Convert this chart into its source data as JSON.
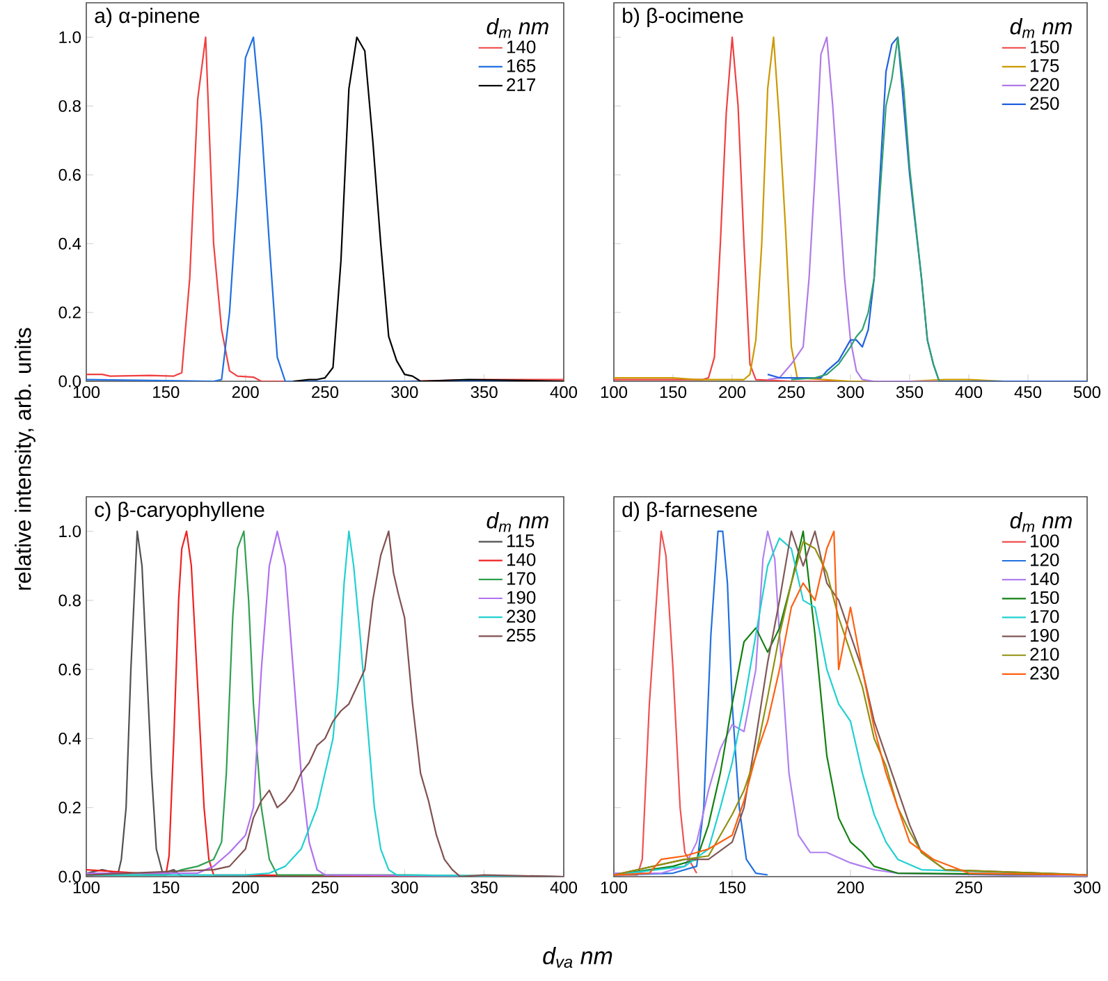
{
  "chart_data": [
    {
      "type": "line",
      "title": "a)  α-pinene",
      "legend_title": "d$_{m}$ nm",
      "ylabel": "relative intensity, arb. units",
      "legend": "top right",
      "xlim": [
        100,
        400
      ],
      "xticks": [
        100,
        150,
        200,
        250,
        300,
        350,
        400
      ],
      "ylim": [
        0,
        1.1
      ],
      "yticks": [
        {
          "value": 0,
          "label": "0.0"
        },
        {
          "value": 0.2,
          "label": "0.2"
        },
        {
          "value": 0.4,
          "label": "0.4"
        },
        {
          "value": 0.6,
          "label": "0.6"
        },
        {
          "value": 0.8,
          "label": "0.8"
        },
        {
          "value": 1.0,
          "label": "1.0"
        }
      ],
      "series": [
        {
          "name": "140",
          "color": "#f04040",
          "x": [
            100,
            110,
            115,
            140,
            155,
            160,
            165,
            170,
            175,
            180,
            185,
            190,
            195,
            205,
            210,
            250,
            300,
            350,
            400
          ],
          "values": [
            0.02,
            0.02,
            0.015,
            0.017,
            0.015,
            0.025,
            0.3,
            0.82,
            1.0,
            0.4,
            0.15,
            0.03,
            0.015,
            0.012,
            0.0,
            0.0,
            0.0,
            0.005,
            0.005
          ]
        },
        {
          "name": "165",
          "color": "#1f6fe0",
          "x": [
            100,
            180,
            185,
            190,
            195,
            200,
            205,
            210,
            215,
            220,
            225,
            300,
            400
          ],
          "values": [
            0.005,
            0.0,
            0.005,
            0.2,
            0.55,
            0.94,
            1.0,
            0.75,
            0.4,
            0.07,
            0.0,
            0.0,
            0.0
          ]
        },
        {
          "name": "217",
          "color": "#000000",
          "x": [
            230,
            240,
            245,
            250,
            255,
            260,
            265,
            270,
            275,
            280,
            285,
            290,
            295,
            300,
            305,
            310,
            340,
            400
          ],
          "values": [
            0.0,
            0.005,
            0.005,
            0.01,
            0.04,
            0.35,
            0.85,
            1.0,
            0.96,
            0.7,
            0.4,
            0.13,
            0.06,
            0.02,
            0.015,
            0.0,
            0.005,
            0.0
          ]
        }
      ]
    },
    {
      "type": "line",
      "title": "b) β-ocimene",
      "legend_title": "d$_{m}$ nm",
      "legend": "top right",
      "tick_labels": "x",
      "xlim": [
        100,
        500
      ],
      "xticks": [
        100,
        150,
        200,
        250,
        300,
        350,
        400,
        450,
        500
      ],
      "ylim": [
        0,
        1.1
      ],
      "yticks": [
        {
          "value": 0,
          "label": null
        },
        {
          "value": 0.2,
          "label": null
        },
        {
          "value": 0.4,
          "label": null
        },
        {
          "value": 0.6,
          "label": null
        },
        {
          "value": 0.8,
          "label": null
        },
        {
          "value": 1.0,
          "label": null
        }
      ],
      "series": [
        {
          "name": "150",
          "color": "#f04040",
          "x": [
            100,
            175,
            180,
            185,
            190,
            195,
            200,
            205,
            210,
            215,
            220,
            250,
            500
          ],
          "values": [
            0.005,
            0.005,
            0.01,
            0.07,
            0.4,
            0.78,
            1.0,
            0.8,
            0.4,
            0.05,
            0.005,
            0.0,
            0.0
          ]
        },
        {
          "name": "175",
          "color": "#cc9900",
          "x": [
            100,
            110,
            150,
            170,
            210,
            215,
            220,
            225,
            230,
            235,
            240,
            245,
            250,
            255,
            300,
            350,
            380,
            400,
            430
          ],
          "values": [
            0.01,
            0.01,
            0.01,
            0.005,
            0.005,
            0.02,
            0.12,
            0.4,
            0.85,
            1.0,
            0.75,
            0.45,
            0.1,
            0.01,
            0.0,
            0.0,
            0.005,
            0.005,
            0.0
          ]
        },
        {
          "name": "220",
          "color": "#b07ae8",
          "x": [
            230,
            240,
            250,
            260,
            265,
            270,
            275,
            280,
            285,
            290,
            295,
            300,
            305,
            310,
            320,
            500
          ],
          "values": [
            0.005,
            0.01,
            0.05,
            0.1,
            0.3,
            0.6,
            0.95,
            1.0,
            0.8,
            0.55,
            0.3,
            0.12,
            0.03,
            0.005,
            0.0,
            0.0
          ]
        },
        {
          "name": "250",
          "color": "#2060e0",
          "x": [
            230,
            240,
            260,
            275,
            280,
            290,
            300,
            305,
            310,
            315,
            320,
            325,
            330,
            335,
            340,
            345,
            350,
            360,
            365,
            370,
            375,
            500
          ],
          "values": [
            0.02,
            0.01,
            0.01,
            0.01,
            0.03,
            0.06,
            0.12,
            0.12,
            0.1,
            0.15,
            0.3,
            0.6,
            0.9,
            0.98,
            1.0,
            0.8,
            0.6,
            0.3,
            0.12,
            0.05,
            0.0,
            0.0
          ]
        },
        {
          "color": "#30a070",
          "x": [
            250,
            270,
            280,
            290,
            300,
            305,
            310,
            315,
            320,
            325,
            330,
            335,
            340,
            345,
            350,
            360,
            365,
            370,
            375
          ],
          "values": [
            0.005,
            0.01,
            0.02,
            0.05,
            0.1,
            0.13,
            0.15,
            0.2,
            0.3,
            0.55,
            0.8,
            0.88,
            1.0,
            0.85,
            0.62,
            0.3,
            0.12,
            0.05,
            0.0
          ]
        }
      ]
    },
    {
      "type": "line",
      "title": "c) β-caryophyllene",
      "legend_title": "d$_{m}$ nm",
      "xlabel": "d$_{va}$ nm",
      "legend": "top right",
      "xlim": [
        100,
        400
      ],
      "xticks": [
        100,
        150,
        200,
        250,
        300,
        350,
        400
      ],
      "ylim": [
        0,
        1.1
      ],
      "yticks": [
        {
          "value": 0,
          "label": "0.0"
        },
        {
          "value": 0.2,
          "label": "0.2"
        },
        {
          "value": 0.4,
          "label": "0.4"
        },
        {
          "value": 0.6,
          "label": "0.6"
        },
        {
          "value": 0.8,
          "label": "0.8"
        },
        {
          "value": 1.0,
          "label": "1.0"
        }
      ],
      "series": [
        {
          "name": "115",
          "color": "#505050",
          "x": [
            100,
            110,
            120,
            122,
            125,
            128,
            132,
            135,
            138,
            141,
            144,
            148,
            155,
            160,
            400
          ],
          "values": [
            0.01,
            0.02,
            0.01,
            0.05,
            0.2,
            0.6,
            1.0,
            0.9,
            0.6,
            0.3,
            0.08,
            0.01,
            0.02,
            0.0,
            0.0
          ]
        },
        {
          "name": "140",
          "color": "#f02020",
          "x": [
            100,
            150,
            152,
            155,
            158,
            160,
            163,
            166,
            170,
            174,
            177,
            180,
            400
          ],
          "values": [
            0.02,
            0.005,
            0.06,
            0.4,
            0.8,
            0.95,
            1.0,
            0.9,
            0.55,
            0.2,
            0.05,
            0.005,
            0.0
          ]
        },
        {
          "name": "170",
          "color": "#30a050",
          "x": [
            100,
            150,
            160,
            170,
            180,
            185,
            188,
            192,
            195,
            199,
            202,
            205,
            210,
            215,
            220,
            300,
            400
          ],
          "values": [
            0.005,
            0.005,
            0.02,
            0.03,
            0.05,
            0.1,
            0.3,
            0.75,
            0.95,
            1.0,
            0.8,
            0.5,
            0.2,
            0.05,
            0.005,
            0.005,
            0.0
          ]
        },
        {
          "name": "190",
          "color": "#b070f0",
          "x": [
            100,
            170,
            180,
            190,
            200,
            205,
            210,
            215,
            220,
            225,
            230,
            235,
            240,
            245,
            250,
            400
          ],
          "values": [
            0.01,
            0.01,
            0.03,
            0.07,
            0.12,
            0.2,
            0.6,
            0.9,
            1.0,
            0.9,
            0.6,
            0.3,
            0.1,
            0.02,
            0.005,
            0.0
          ]
        },
        {
          "name": "230",
          "color": "#20d0d0",
          "x": [
            100,
            200,
            215,
            225,
            235,
            240,
            245,
            250,
            255,
            258,
            262,
            265,
            268,
            272,
            277,
            281,
            285,
            290,
            295,
            400
          ],
          "values": [
            0.005,
            0.005,
            0.01,
            0.03,
            0.08,
            0.14,
            0.2,
            0.3,
            0.4,
            0.55,
            0.85,
            1.0,
            0.9,
            0.7,
            0.42,
            0.2,
            0.08,
            0.02,
            0.005,
            0.0
          ]
        },
        {
          "name": "255",
          "color": "#805050",
          "x": [
            100,
            180,
            190,
            200,
            205,
            210,
            215,
            220,
            225,
            230,
            235,
            240,
            245,
            250,
            255,
            260,
            265,
            270,
            275,
            280,
            285,
            290,
            293,
            296,
            300,
            305,
            310,
            315,
            320,
            325,
            330,
            335,
            350,
            400
          ],
          "values": [
            0.005,
            0.02,
            0.03,
            0.08,
            0.17,
            0.22,
            0.25,
            0.2,
            0.22,
            0.25,
            0.3,
            0.33,
            0.38,
            0.4,
            0.45,
            0.48,
            0.5,
            0.55,
            0.6,
            0.8,
            0.93,
            1.0,
            0.88,
            0.82,
            0.75,
            0.5,
            0.3,
            0.22,
            0.12,
            0.05,
            0.02,
            0.0,
            0.005,
            0.0
          ]
        }
      ]
    },
    {
      "type": "line",
      "title": "d) β-farnesene",
      "legend_title": "d$_{m}$ nm",
      "legend": "top right",
      "tick_labels": "x",
      "xlim": [
        100,
        300
      ],
      "xticks": [
        100,
        150,
        200,
        250,
        300
      ],
      "ylim": [
        0,
        1.1
      ],
      "yticks": [
        {
          "value": 0,
          "label": null
        },
        {
          "value": 0.2,
          "label": null
        },
        {
          "value": 0.4,
          "label": null
        },
        {
          "value": 0.6,
          "label": null
        },
        {
          "value": 0.8,
          "label": null
        },
        {
          "value": 1.0,
          "label": null
        }
      ],
      "series": [
        {
          "name": "100",
          "color": "#f05050",
          "x": [
            100,
            110,
            112,
            115,
            120,
            122,
            125,
            128,
            130,
            135
          ],
          "values": [
            0.005,
            0.005,
            0.05,
            0.5,
            1.0,
            0.93,
            0.6,
            0.2,
            0.07,
            0.01
          ]
        },
        {
          "name": "120",
          "color": "#2070e0",
          "x": [
            100,
            125,
            135,
            138,
            141,
            144,
            146,
            148,
            150,
            153,
            156,
            160,
            165
          ],
          "values": [
            0.005,
            0.01,
            0.03,
            0.2,
            0.7,
            1.0,
            1.0,
            0.85,
            0.5,
            0.2,
            0.05,
            0.01,
            0.005
          ]
        },
        {
          "name": "140",
          "color": "#b080f0",
          "x": [
            100,
            120,
            130,
            135,
            140,
            145,
            150,
            155,
            160,
            163,
            165,
            168,
            170,
            174,
            178,
            183,
            190,
            200,
            210,
            220,
            300
          ],
          "values": [
            0.01,
            0.01,
            0.03,
            0.1,
            0.25,
            0.37,
            0.44,
            0.42,
            0.6,
            0.92,
            1.0,
            0.92,
            0.7,
            0.3,
            0.12,
            0.07,
            0.07,
            0.04,
            0.02,
            0.01,
            0.0
          ]
        },
        {
          "name": "150",
          "color": "#108010",
          "x": [
            100,
            125,
            135,
            140,
            145,
            150,
            155,
            160,
            165,
            170,
            175,
            180,
            185,
            190,
            195,
            200,
            205,
            210,
            220,
            300
          ],
          "values": [
            0.005,
            0.03,
            0.05,
            0.15,
            0.3,
            0.5,
            0.68,
            0.72,
            0.65,
            0.72,
            0.85,
            1.0,
            0.7,
            0.35,
            0.17,
            0.1,
            0.07,
            0.03,
            0.01,
            0.005
          ]
        },
        {
          "name": "170",
          "color": "#20d0d0",
          "x": [
            100,
            130,
            140,
            145,
            150,
            155,
            160,
            165,
            170,
            175,
            180,
            185,
            190,
            195,
            200,
            205,
            210,
            215,
            220,
            230,
            300
          ],
          "values": [
            0.005,
            0.03,
            0.08,
            0.2,
            0.33,
            0.5,
            0.7,
            0.9,
            0.98,
            0.95,
            0.8,
            0.78,
            0.6,
            0.5,
            0.45,
            0.3,
            0.18,
            0.1,
            0.05,
            0.02,
            0.005
          ]
        },
        {
          "name": "190",
          "color": "#805858",
          "x": [
            100,
            130,
            140,
            150,
            155,
            160,
            165,
            170,
            175,
            180,
            185,
            190,
            195,
            200,
            205,
            210,
            215,
            220,
            225,
            230,
            240,
            300
          ],
          "values": [
            0.005,
            0.05,
            0.05,
            0.1,
            0.2,
            0.4,
            0.62,
            0.8,
            1.0,
            0.9,
            1.0,
            0.85,
            0.8,
            0.7,
            0.6,
            0.45,
            0.35,
            0.25,
            0.15,
            0.07,
            0.02,
            0.005
          ]
        },
        {
          "name": "210",
          "color": "#909010",
          "x": [
            100,
            130,
            140,
            150,
            155,
            160,
            165,
            170,
            175,
            180,
            185,
            190,
            195,
            200,
            205,
            210,
            215,
            220,
            225,
            230,
            240,
            300
          ],
          "values": [
            0.005,
            0.05,
            0.06,
            0.18,
            0.25,
            0.35,
            0.52,
            0.7,
            0.85,
            0.97,
            0.95,
            0.88,
            0.75,
            0.65,
            0.55,
            0.4,
            0.32,
            0.2,
            0.13,
            0.07,
            0.02,
            0.005
          ]
        },
        {
          "name": "230",
          "color": "#ff6010",
          "x": [
            100,
            115,
            120,
            130,
            140,
            150,
            155,
            160,
            165,
            170,
            175,
            180,
            185,
            190,
            193,
            195,
            200,
            205,
            210,
            215,
            220,
            225,
            235,
            250,
            300
          ],
          "values": [
            0.005,
            0.01,
            0.05,
            0.06,
            0.08,
            0.12,
            0.22,
            0.35,
            0.45,
            0.6,
            0.78,
            0.85,
            0.8,
            0.95,
            1.0,
            0.6,
            0.78,
            0.6,
            0.43,
            0.3,
            0.2,
            0.1,
            0.05,
            0.01,
            0.005
          ]
        }
      ]
    }
  ]
}
